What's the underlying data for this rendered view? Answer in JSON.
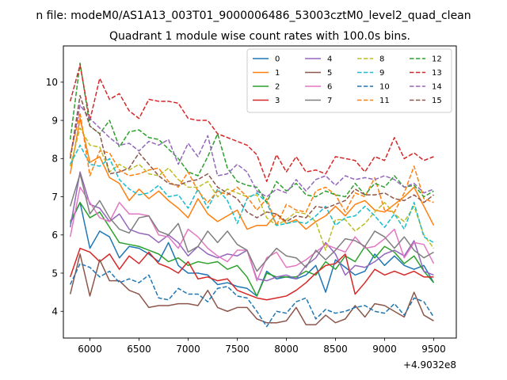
{
  "figure": {
    "suptitle": "n file: modeM0/AS1A13_003T01_9000006486_53003cztM0_level2_quad_clean",
    "offset_label": "+4.9032e8"
  },
  "chart_data": {
    "type": "line",
    "title": "Quadrant 1 module wise count rates with 100.0s bins.",
    "xlabel": "",
    "ylabel": "",
    "xlim": [
      5730,
      9730
    ],
    "ylim": [
      3.3,
      10.95
    ],
    "xticks": [
      6000,
      6500,
      7000,
      7500,
      8000,
      8500,
      9000,
      9500
    ],
    "yticks": [
      4,
      5,
      6,
      7,
      8,
      9,
      10
    ],
    "legend_position": "top-right",
    "x": [
      5800,
      5900,
      6000,
      6100,
      6200,
      6300,
      6400,
      6500,
      6600,
      6700,
      6800,
      6900,
      7000,
      7100,
      7200,
      7300,
      7400,
      7500,
      7600,
      7700,
      7800,
      7900,
      8000,
      8100,
      8200,
      8300,
      8400,
      8500,
      8600,
      8700,
      8800,
      8900,
      9000,
      9100,
      9200,
      9300,
      9400,
      9500
    ],
    "series": [
      {
        "name": "0",
        "color": "#1f77b4",
        "dash": "solid",
        "values": [
          6.3,
          6.85,
          5.65,
          6.1,
          5.95,
          5.4,
          5.7,
          5.65,
          5.5,
          5.3,
          5.8,
          5.2,
          5.0,
          5.0,
          4.95,
          4.7,
          4.75,
          4.65,
          4.6,
          4.4,
          5.05,
          4.85,
          4.9,
          4.85,
          4.95,
          5.2,
          4.5,
          5.35,
          5.15,
          4.95,
          5.05,
          5.5,
          5.2,
          5.45,
          5.2,
          5.1,
          5.2,
          4.75
        ]
      },
      {
        "name": "1",
        "color": "#ff7f0e",
        "dash": "solid",
        "values": [
          7.6,
          9.05,
          7.9,
          8.05,
          7.5,
          7.35,
          6.9,
          7.2,
          6.95,
          7.15,
          6.9,
          6.7,
          6.45,
          6.95,
          6.55,
          6.35,
          6.5,
          6.65,
          6.15,
          6.25,
          6.25,
          6.55,
          6.3,
          6.4,
          6.15,
          6.35,
          6.5,
          6.75,
          6.5,
          6.8,
          6.9,
          6.65,
          6.6,
          6.8,
          7.0,
          7.25,
          6.75,
          6.25
        ]
      },
      {
        "name": "2",
        "color": "#2ca02c",
        "dash": "solid",
        "values": [
          6.35,
          6.85,
          6.45,
          6.6,
          6.2,
          5.8,
          5.75,
          5.7,
          5.6,
          5.5,
          5.3,
          5.4,
          5.2,
          5.3,
          5.25,
          5.3,
          5.1,
          5.2,
          4.9,
          4.4,
          5.0,
          4.9,
          4.9,
          4.9,
          5.05,
          4.95,
          5.3,
          5.1,
          5.45,
          5.3,
          5.7,
          5.4,
          5.7,
          5.55,
          5.25,
          5.45,
          5.05,
          4.75
        ]
      },
      {
        "name": "3",
        "color": "#d62728",
        "dash": "solid",
        "values": [
          4.9,
          5.65,
          5.55,
          5.3,
          5.5,
          5.1,
          5.45,
          5.25,
          5.55,
          5.25,
          5.15,
          5.0,
          5.3,
          4.85,
          4.9,
          4.8,
          4.85,
          4.55,
          4.45,
          4.35,
          4.3,
          4.35,
          4.4,
          4.55,
          4.75,
          5.0,
          5.2,
          5.25,
          5.5,
          4.45,
          4.75,
          5.1,
          4.95,
          5.05,
          4.95,
          5.05,
          4.9,
          4.9
        ]
      },
      {
        "name": "4",
        "color": "#9467bd",
        "dash": "solid",
        "values": [
          6.2,
          7.65,
          6.8,
          6.7,
          6.35,
          6.55,
          6.15,
          6.05,
          6.0,
          5.8,
          6.0,
          5.8,
          5.45,
          5.7,
          5.5,
          5.4,
          5.5,
          5.45,
          5.6,
          4.85,
          4.8,
          4.9,
          4.95,
          4.85,
          5.2,
          5.4,
          5.8,
          5.5,
          4.95,
          5.2,
          5.15,
          5.3,
          5.5,
          5.6,
          5.45,
          5.85,
          5.05,
          4.95
        ]
      },
      {
        "name": "5",
        "color": "#8c564b",
        "dash": "solid",
        "values": [
          4.45,
          5.5,
          4.4,
          5.35,
          4.8,
          4.8,
          4.55,
          4.45,
          4.1,
          4.15,
          4.15,
          4.2,
          4.2,
          4.15,
          4.55,
          4.1,
          4.0,
          4.1,
          4.1,
          3.8,
          3.7,
          3.7,
          3.75,
          4.1,
          3.65,
          3.65,
          3.9,
          3.7,
          3.8,
          4.15,
          3.85,
          4.2,
          4.15,
          4.0,
          3.85,
          4.5,
          3.9,
          3.75
        ]
      },
      {
        "name": "6",
        "color": "#e377c2",
        "dash": "solid",
        "values": [
          5.95,
          7.25,
          6.85,
          6.45,
          6.35,
          6.85,
          6.55,
          6.55,
          6.5,
          6.0,
          5.95,
          5.65,
          6.15,
          5.95,
          5.65,
          5.45,
          5.3,
          5.6,
          5.6,
          4.8,
          5.4,
          5.55,
          5.15,
          5.2,
          5.35,
          5.55,
          5.75,
          5.65,
          5.55,
          5.95,
          5.65,
          5.7,
          5.9,
          6.15,
          5.4,
          5.8,
          5.75,
          5.25
        ]
      },
      {
        "name": "7",
        "color": "#7f7f7f",
        "dash": "solid",
        "values": [
          6.75,
          7.6,
          6.55,
          6.9,
          6.45,
          6.15,
          6.05,
          6.45,
          6.5,
          6.1,
          6.0,
          6.3,
          5.55,
          5.7,
          6.1,
          5.8,
          6.1,
          5.75,
          5.6,
          5.05,
          5.35,
          5.65,
          5.45,
          5.4,
          5.15,
          5.6,
          5.35,
          5.6,
          5.9,
          5.85,
          5.7,
          6.1,
          5.95,
          5.65,
          5.95,
          5.6,
          5.4,
          5.55
        ]
      },
      {
        "name": "8",
        "color": "#bcbd22",
        "dash": "dashed",
        "values": [
          7.8,
          8.8,
          8.35,
          8.3,
          7.65,
          7.85,
          7.7,
          7.85,
          7.6,
          7.55,
          7.75,
          7.45,
          7.25,
          7.25,
          7.4,
          7.0,
          7.2,
          7.1,
          7.0,
          7.05,
          6.45,
          6.25,
          6.4,
          6.6,
          6.55,
          6.35,
          5.6,
          6.4,
          6.4,
          6.1,
          6.3,
          6.6,
          6.85,
          6.55,
          6.35,
          6.75,
          6.0,
          5.65
        ]
      },
      {
        "name": "9",
        "color": "#17becf",
        "dash": "dashed",
        "values": [
          7.85,
          8.35,
          7.85,
          7.8,
          8.0,
          7.45,
          7.2,
          7.05,
          7.1,
          7.3,
          7.0,
          7.05,
          6.7,
          7.2,
          6.7,
          7.2,
          6.9,
          6.3,
          6.95,
          7.1,
          6.85,
          6.25,
          6.3,
          6.35,
          6.3,
          6.5,
          6.75,
          6.25,
          6.45,
          6.5,
          6.75,
          6.5,
          6.2,
          6.55,
          6.15,
          6.85,
          5.95,
          5.8
        ]
      },
      {
        "name": "10",
        "color": "#1f77b4",
        "dash": "dashed",
        "values": [
          4.7,
          5.25,
          5.15,
          4.9,
          5.05,
          4.75,
          4.85,
          4.75,
          4.95,
          4.35,
          4.3,
          4.6,
          4.45,
          4.45,
          4.25,
          4.6,
          4.65,
          4.4,
          4.35,
          4.0,
          3.6,
          4.0,
          3.95,
          4.25,
          4.35,
          3.8,
          4.05,
          3.95,
          4.0,
          4.1,
          4.15,
          4.0,
          3.95,
          4.2,
          3.9,
          4.35,
          4.25,
          3.85
        ]
      },
      {
        "name": "11",
        "color": "#ff7f0e",
        "dash": "dashed",
        "values": [
          8.1,
          9.2,
          7.55,
          8.2,
          8.15,
          7.7,
          7.55,
          7.6,
          7.7,
          7.75,
          7.4,
          7.25,
          7.65,
          7.15,
          6.85,
          7.15,
          7.05,
          7.25,
          7.0,
          6.65,
          6.95,
          6.25,
          6.8,
          6.65,
          6.6,
          7.15,
          7.25,
          7.05,
          6.6,
          7.1,
          7.0,
          7.5,
          6.65,
          6.6,
          7.1,
          7.8,
          6.95,
          6.85
        ]
      },
      {
        "name": "12",
        "color": "#2ca02c",
        "dash": "dashed",
        "values": [
          8.5,
          10.5,
          8.85,
          8.65,
          9.0,
          8.3,
          8.7,
          8.75,
          8.55,
          8.5,
          8.25,
          8.0,
          7.65,
          7.55,
          8.05,
          8.65,
          7.75,
          7.4,
          7.3,
          7.25,
          6.85,
          7.4,
          7.15,
          7.35,
          7.05,
          7.0,
          7.15,
          7.05,
          7.0,
          7.35,
          7.05,
          7.35,
          7.25,
          7.55,
          7.25,
          7.3,
          7.0,
          7.15
        ]
      },
      {
        "name": "13",
        "color": "#d62728",
        "dash": "dashed",
        "values": [
          9.5,
          10.45,
          9.0,
          10.1,
          9.55,
          9.7,
          9.25,
          9.05,
          9.55,
          9.5,
          9.5,
          9.45,
          9.05,
          9.0,
          9.0,
          8.65,
          8.55,
          8.45,
          8.35,
          8.1,
          7.4,
          8.1,
          7.65,
          8.05,
          7.65,
          7.7,
          7.6,
          8.05,
          8.0,
          7.95,
          7.65,
          8.05,
          7.95,
          8.55,
          8.0,
          8.15,
          7.95,
          8.05
        ]
      },
      {
        "name": "14",
        "color": "#9467bd",
        "dash": "dashed",
        "values": [
          8.0,
          9.4,
          9.05,
          8.8,
          8.55,
          8.35,
          8.4,
          8.2,
          8.45,
          8.35,
          8.5,
          7.85,
          8.4,
          8.05,
          8.6,
          7.55,
          7.6,
          7.85,
          7.65,
          7.15,
          7.0,
          7.2,
          7.1,
          7.45,
          7.15,
          7.45,
          7.55,
          7.3,
          7.55,
          7.45,
          7.5,
          7.45,
          7.55,
          7.45,
          7.25,
          7.35,
          7.1,
          7.2
        ]
      },
      {
        "name": "15",
        "color": "#8c564b",
        "dash": "dashed",
        "values": [
          8.0,
          9.65,
          8.85,
          8.65,
          7.6,
          7.65,
          7.75,
          8.15,
          7.85,
          7.55,
          7.35,
          7.3,
          7.4,
          7.45,
          7.6,
          7.25,
          7.1,
          6.95,
          6.6,
          6.45,
          6.6,
          6.55,
          6.35,
          6.5,
          6.45,
          6.75,
          6.7,
          6.8,
          6.9,
          7.2,
          7.05,
          7.05,
          7.1,
          6.95,
          6.9,
          7.05,
          6.85,
          7.05
        ]
      }
    ]
  }
}
